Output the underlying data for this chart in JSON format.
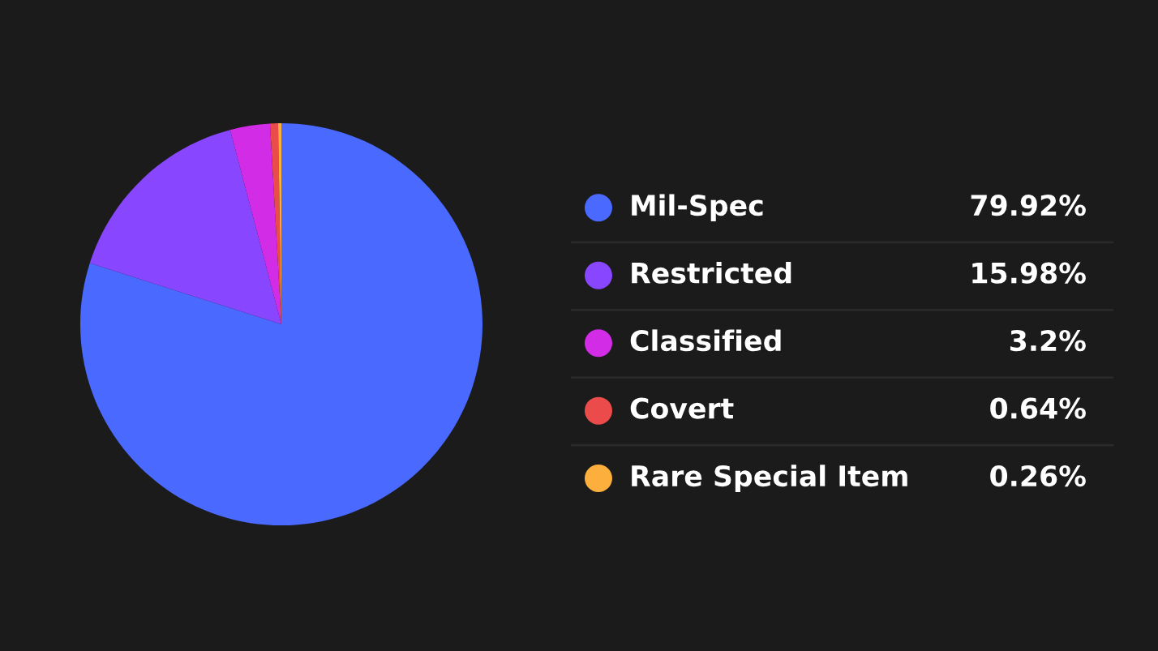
{
  "chart_data": {
    "type": "pie",
    "categories": [
      "Mil-Spec",
      "Restricted",
      "Classified",
      "Covert",
      "Rare Special Item"
    ],
    "values": [
      79.92,
      15.98,
      3.2,
      0.64,
      0.26
    ],
    "colors": [
      "#4a69ff",
      "#8847ff",
      "#d32ce6",
      "#eb4b4b",
      "#fcaf3c"
    ],
    "value_labels": [
      "79.92%",
      "15.98%",
      "3.2%",
      "0.64%",
      "0.26%"
    ],
    "legend": "right"
  }
}
